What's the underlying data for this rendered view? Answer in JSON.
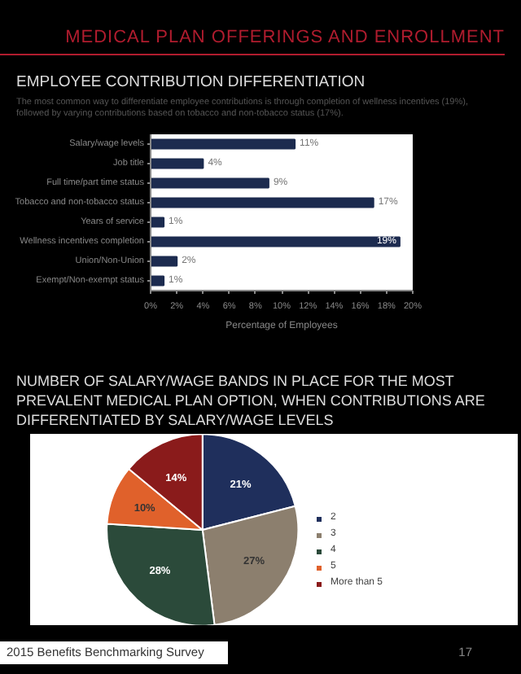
{
  "chart_data": [
    {
      "type": "bar",
      "orientation": "horizontal",
      "title": "EMPLOYEE CONTRIBUTION DIFFERENTIATION",
      "subtitle": "The most common way to differentiate employee contributions is through completion of wellness incentives (19%), followed by varying contributions based on tobacco and non-tobacco status (17%).",
      "xlabel": "Percentage of Employees",
      "categories": [
        "Salary/wage levels",
        "Job title",
        "Full time/part time status",
        "Tobacco and non-tobacco status",
        "Years of service",
        "Wellness incentives completion",
        "Union/Non-Union",
        "Exempt/Non-exempt status"
      ],
      "values": [
        11,
        4,
        9,
        17,
        1,
        19,
        2,
        1
      ],
      "value_labels": [
        "11%",
        "4%",
        "9%",
        "17%",
        "1%",
        "19%",
        "2%",
        "1%"
      ],
      "color": "#1c2b4f",
      "xlim": [
        0,
        20
      ],
      "xticks": [
        {
          "value": 0,
          "label": "0%"
        },
        {
          "value": 2,
          "label": "2%"
        },
        {
          "value": 4,
          "label": "4%"
        },
        {
          "value": 6,
          "label": "6%"
        },
        {
          "value": 8,
          "label": "8%"
        },
        {
          "value": 10,
          "label": "10%"
        },
        {
          "value": 12,
          "label": "12%"
        },
        {
          "value": 14,
          "label": "14%"
        },
        {
          "value": 16,
          "label": "16%"
        },
        {
          "value": 18,
          "label": "18%"
        },
        {
          "value": 20,
          "label": "20%"
        }
      ],
      "grid": false,
      "annotations": [
        "MEDICAL PLAN OFFERINGS AND ENROLLMENT"
      ]
    },
    {
      "type": "pie",
      "title": "NUMBER OF SALARY/WAGE BANDS IN PLACE FOR THE MOST PREVALENT MEDICAL PLAN OPTION, WHEN CONTRIBUTIONS ARE DIFFERENTIATED BY SALARY/WAGE LEVELS",
      "categories": [
        "2",
        "3",
        "4",
        "5",
        "More than 5"
      ],
      "values": [
        21,
        27,
        28,
        10,
        14
      ],
      "value_labels": [
        "21%",
        "27%",
        "28%",
        "10%",
        "14%"
      ],
      "colors": [
        "#1f2f5c",
        "#8c7f6e",
        "#2b4a3a",
        "#e0612b",
        "#8a1b1b"
      ],
      "legend": "right",
      "annotations": [
        "2015 Benefits Benchmarking Survey",
        "17"
      ]
    }
  ]
}
